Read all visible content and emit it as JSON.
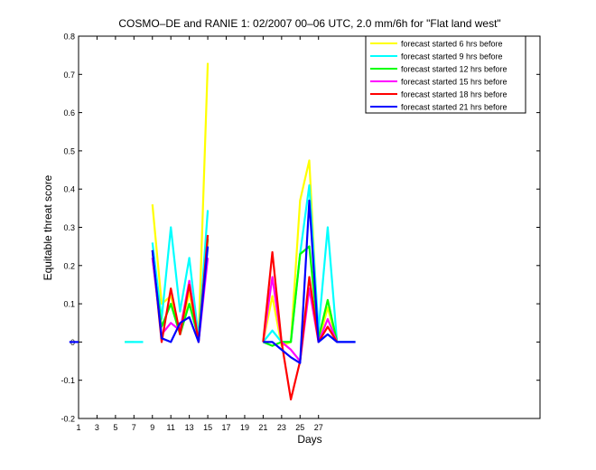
{
  "chart_data": {
    "type": "line",
    "title": "COSMO–DE and RANIE 1: 02/2007 00–06 UTC, 2.0 mm/6h for \"Flat land west\"",
    "xlabel": "Days",
    "ylabel": "Equitable threat score",
    "xlim": [
      1,
      51
    ],
    "ylim": [
      -0.2,
      0.8
    ],
    "xticks": [
      1,
      3,
      5,
      7,
      9,
      11,
      13,
      15,
      17,
      19,
      21,
      23,
      25,
      27
    ],
    "yticks": [
      -0.2,
      -0.1,
      0,
      0.1,
      0.2,
      0.3,
      0.4,
      0.5,
      0.6,
      0.7,
      0.8
    ],
    "grid": false,
    "legend_position": "top-right",
    "series": [
      {
        "name": "forecast started 6 hrs before",
        "color": "#ffff00",
        "segments": [
          [
            [
              6,
              0
            ],
            [
              7,
              0
            ]
          ],
          [
            [
              9,
              0.36
            ],
            [
              10,
              0.1
            ],
            [
              11,
              0.12
            ],
            [
              12,
              0.02
            ],
            [
              13,
              0.13
            ],
            [
              14,
              0.01
            ],
            [
              15,
              0.73
            ]
          ],
          [
            [
              21,
              0
            ],
            [
              22,
              0.12
            ],
            [
              23,
              -0.01
            ],
            [
              24,
              0
            ],
            [
              25,
              0.37
            ],
            [
              26,
              0.475
            ],
            [
              27,
              0
            ],
            [
              28,
              0.09
            ],
            [
              29,
              0
            ]
          ]
        ]
      },
      {
        "name": "forecast started 9 hrs before",
        "color": "#00ffff",
        "segments": [
          [
            [
              6,
              0
            ],
            [
              8,
              0
            ]
          ],
          [
            [
              9,
              0.26
            ],
            [
              10,
              0.06
            ],
            [
              11,
              0.3
            ],
            [
              12,
              0.08
            ],
            [
              13,
              0.22
            ],
            [
              14,
              0.01
            ],
            [
              15,
              0.345
            ]
          ],
          [
            [
              21,
              0
            ],
            [
              22,
              0.03
            ],
            [
              23,
              0
            ],
            [
              24,
              0
            ],
            [
              25,
              0.23
            ],
            [
              26,
              0.41
            ],
            [
              27,
              0.03
            ],
            [
              28,
              0.3
            ],
            [
              29,
              0
            ],
            [
              31,
              0
            ]
          ]
        ]
      },
      {
        "name": "forecast started 12 hrs before",
        "color": "#00ff00",
        "segments": [
          [
            [
              9,
              0.22
            ],
            [
              10,
              0.04
            ],
            [
              11,
              0.1
            ],
            [
              12,
              0.02
            ],
            [
              13,
              0.1
            ],
            [
              14,
              0.01
            ],
            [
              15,
              0.27
            ]
          ],
          [
            [
              21,
              0
            ],
            [
              22,
              -0.01
            ],
            [
              23,
              0
            ],
            [
              24,
              0
            ],
            [
              25,
              0.23
            ],
            [
              26,
              0.25
            ],
            [
              27,
              0.01
            ],
            [
              28,
              0.11
            ],
            [
              29,
              0
            ]
          ]
        ]
      },
      {
        "name": "forecast started 15 hrs before",
        "color": "#ff00ff",
        "segments": [
          [
            [
              9,
              0.22
            ],
            [
              10,
              0.02
            ],
            [
              11,
              0.05
            ],
            [
              12,
              0.03
            ],
            [
              13,
              0.16
            ],
            [
              14,
              0
            ],
            [
              15,
              0.22
            ]
          ],
          [
            [
              21,
              0
            ],
            [
              22,
              0.17
            ],
            [
              23,
              0
            ],
            [
              24,
              -0.02
            ],
            [
              25,
              -0.05
            ],
            [
              26,
              0.14
            ],
            [
              27,
              0
            ],
            [
              28,
              0.06
            ],
            [
              29,
              0
            ]
          ]
        ]
      },
      {
        "name": "forecast started 18 hrs before",
        "color": "#ff0000",
        "segments": [
          [
            [
              9,
              0.24
            ],
            [
              10,
              0
            ],
            [
              11,
              0.14
            ],
            [
              12,
              0.02
            ],
            [
              13,
              0.15
            ],
            [
              14,
              0
            ],
            [
              15,
              0.28
            ]
          ],
          [
            [
              21,
              0
            ],
            [
              22,
              0.235
            ],
            [
              23,
              0
            ],
            [
              24,
              -0.15
            ],
            [
              25,
              -0.05
            ],
            [
              26,
              0.17
            ],
            [
              27,
              0
            ],
            [
              28,
              0.04
            ],
            [
              29,
              0
            ]
          ]
        ]
      },
      {
        "name": "forecast started 21 hrs before",
        "color": "#0000ff",
        "segments": [
          [
            [
              0,
              0
            ],
            [
              1,
              0
            ]
          ],
          [
            [
              9,
              0.24
            ],
            [
              10,
              0.01
            ],
            [
              11,
              0
            ],
            [
              12,
              0.05
            ],
            [
              13,
              0.065
            ],
            [
              14,
              0
            ],
            [
              15,
              0.25
            ]
          ],
          [
            [
              21,
              0
            ],
            [
              22,
              0
            ],
            [
              23,
              -0.02
            ],
            [
              24,
              -0.04
            ],
            [
              25,
              -0.055
            ],
            [
              26,
              0.37
            ],
            [
              27,
              0
            ],
            [
              28,
              0.02
            ],
            [
              29,
              0
            ],
            [
              31,
              0
            ]
          ]
        ]
      }
    ]
  }
}
